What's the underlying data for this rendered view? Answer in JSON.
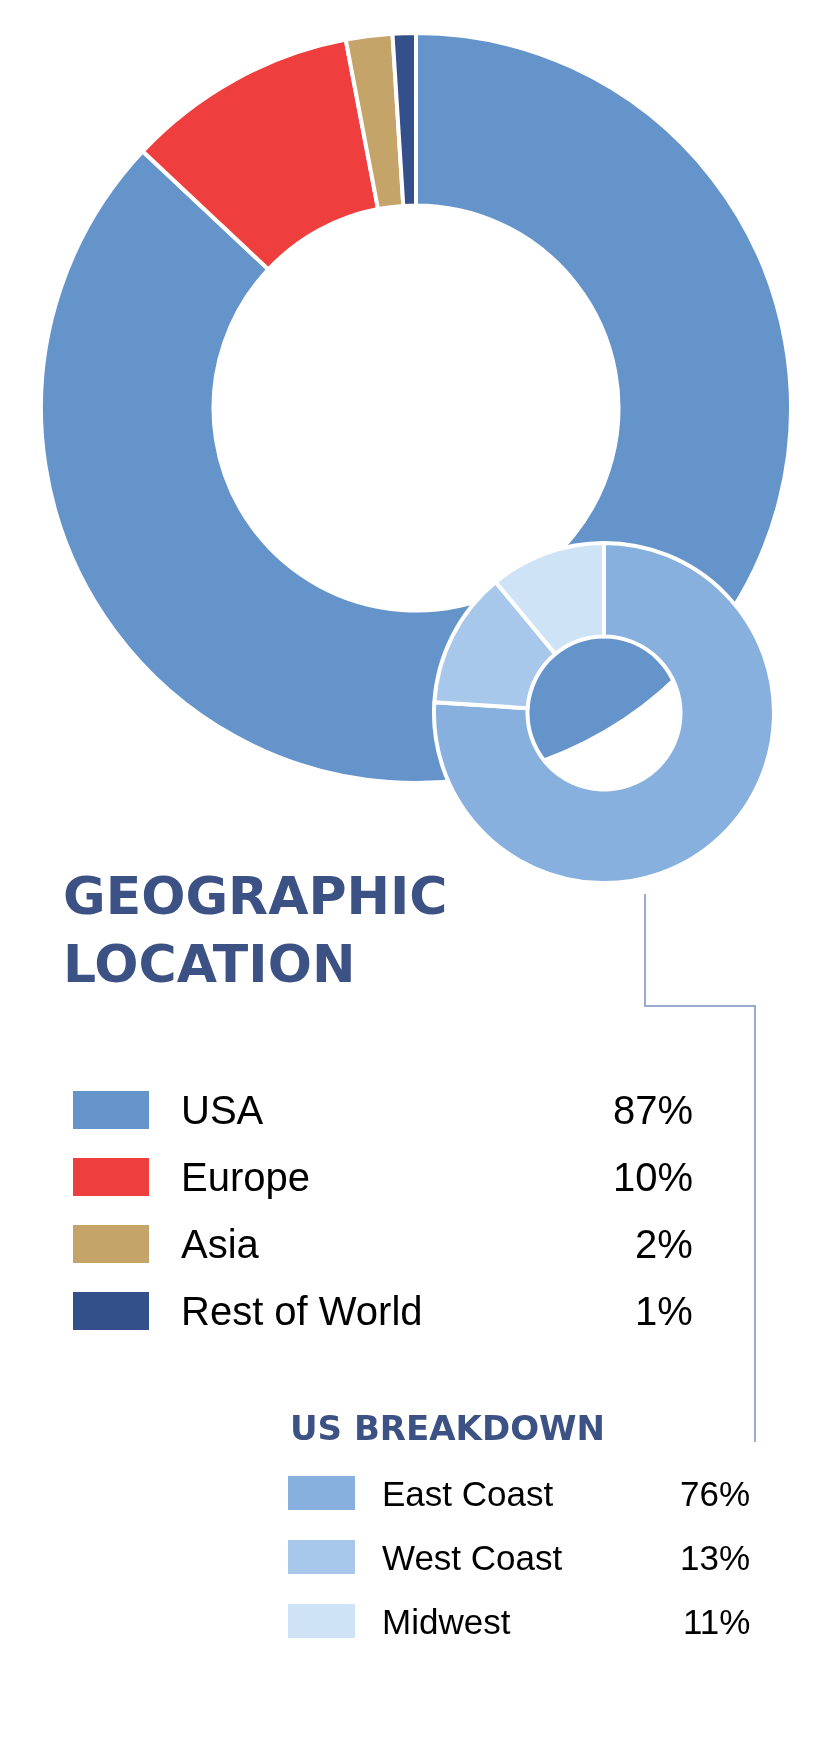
{
  "chart_data": [
    {
      "type": "donut",
      "title": "GEOGRAPHIC LOCATION",
      "categories": [
        "USA",
        "Europe",
        "Asia",
        "Rest of World"
      ],
      "values": [
        87,
        10,
        2,
        1
      ],
      "value_labels": [
        "87%",
        "10%",
        "2%",
        "1%"
      ],
      "colors": [
        "#6594cb",
        "#ef3e3e",
        "#c4a468",
        "#34508a"
      ],
      "legend": "bottom"
    },
    {
      "type": "donut",
      "title": "US BREAKDOWN",
      "categories": [
        "East Coast",
        "West Coast",
        "Midwest"
      ],
      "values": [
        76,
        13,
        11
      ],
      "value_labels": [
        "76%",
        "13%",
        "11%"
      ],
      "colors": [
        "#87b0de",
        "#a7c8eb",
        "#cfe3f6"
      ],
      "legend": "bottom"
    }
  ]
}
